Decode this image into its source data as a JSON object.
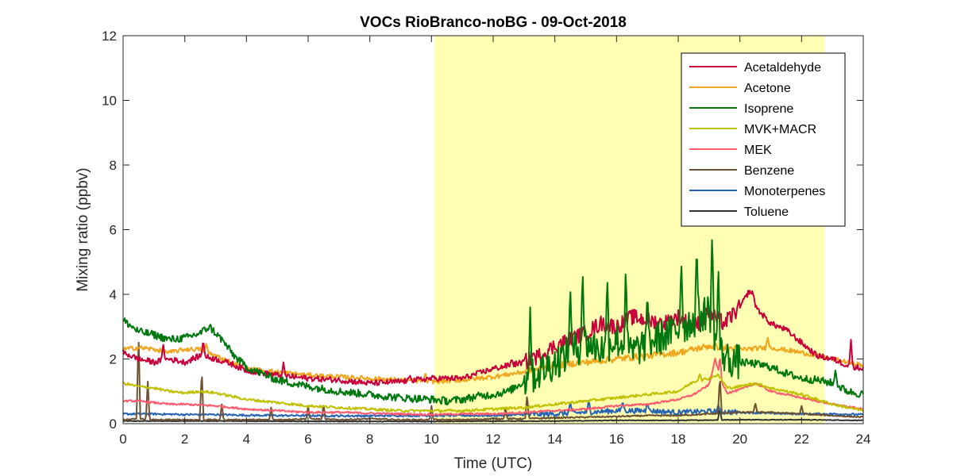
{
  "chart_data": {
    "type": "line",
    "title": "VOCs RioBranco-noBG - 09-Oct-2018",
    "xlabel": "Time (UTC)",
    "ylabel": "Mixing ratio (ppbv)",
    "xlim": [
      0,
      24
    ],
    "ylim": [
      0,
      12
    ],
    "xticks": [
      0,
      2,
      4,
      6,
      8,
      10,
      12,
      14,
      16,
      18,
      20,
      22,
      24
    ],
    "yticks": [
      0,
      2,
      4,
      6,
      8,
      10,
      12
    ],
    "grid": false,
    "legend_position": "top-right",
    "highlight_band": {
      "x": [
        10.1,
        22.75
      ],
      "color": "#ffffb3"
    },
    "series": [
      {
        "name": "Acetaldehyde",
        "color": "#c8003c",
        "x": [
          0,
          0.5,
          1,
          1.5,
          2,
          2.5,
          3,
          3.5,
          4,
          5,
          6,
          7,
          8,
          9,
          10,
          11,
          12,
          12.5,
          13,
          13.5,
          14,
          14.5,
          15,
          15.5,
          16,
          16.5,
          17,
          17.5,
          18,
          18.5,
          19,
          19.5,
          20,
          20.3,
          20.6,
          21,
          21.5,
          22,
          22.5,
          23,
          23.5,
          24
        ],
        "y": [
          2.2,
          2.0,
          1.9,
          2.0,
          1.9,
          2.1,
          2.0,
          1.85,
          1.65,
          1.5,
          1.4,
          1.35,
          1.25,
          1.3,
          1.4,
          1.4,
          1.7,
          1.8,
          1.9,
          2.1,
          2.4,
          2.6,
          2.8,
          3.1,
          3.0,
          3.3,
          3.2,
          3.1,
          3.3,
          3.0,
          3.4,
          3.1,
          3.6,
          4.1,
          3.5,
          3.1,
          2.9,
          2.5,
          2.1,
          2.0,
          1.8,
          1.7
        ],
        "spikes": [
          [
            1.3,
            2.5
          ],
          [
            2.6,
            2.6
          ],
          [
            5.2,
            1.9
          ],
          [
            9.3,
            1.5
          ],
          [
            12.6,
            2.0
          ],
          [
            13.3,
            2.2
          ],
          [
            18.9,
            3.6
          ],
          [
            20.4,
            4.1
          ],
          [
            23.6,
            2.6
          ]
        ]
      },
      {
        "name": "Acetone",
        "color": "#f0a61e",
        "x": [
          0,
          0.5,
          1,
          1.5,
          2,
          2.5,
          3,
          3.5,
          4,
          5,
          6,
          7,
          8,
          9,
          10,
          11,
          12,
          13,
          14,
          15,
          16,
          17,
          18,
          19,
          20,
          21,
          22,
          23,
          24
        ],
        "y": [
          2.3,
          2.35,
          2.3,
          2.2,
          2.3,
          2.3,
          2.1,
          1.9,
          1.7,
          1.6,
          1.5,
          1.45,
          1.4,
          1.35,
          1.3,
          1.35,
          1.45,
          1.6,
          1.8,
          1.9,
          2.0,
          2.1,
          2.2,
          2.4,
          2.3,
          2.35,
          2.2,
          2.0,
          1.8
        ],
        "spikes": [
          [
            2.7,
            2.5
          ],
          [
            9.8,
            1.6
          ],
          [
            20.9,
            2.7
          ]
        ]
      },
      {
        "name": "Isoprene",
        "color": "#00780f",
        "x": [
          0,
          0.5,
          1,
          1.5,
          2,
          2.5,
          2.8,
          3.2,
          3.6,
          4,
          5,
          6,
          7,
          8,
          9,
          10,
          10.5,
          11,
          11.5,
          12,
          12.5,
          13,
          13.5,
          14,
          14.5,
          15,
          15.5,
          16,
          16.5,
          17,
          17.5,
          18,
          18.5,
          19,
          19.3,
          19.6,
          20,
          20.5,
          21,
          21.5,
          22,
          22.5,
          23,
          23.5,
          24
        ],
        "y": [
          3.2,
          2.85,
          2.75,
          2.6,
          2.65,
          2.8,
          3.0,
          2.6,
          2.1,
          1.75,
          1.35,
          1.15,
          1.0,
          0.9,
          0.8,
          0.75,
          0.7,
          0.75,
          0.85,
          0.9,
          1.0,
          1.3,
          1.6,
          1.9,
          2.2,
          2.5,
          2.3,
          2.6,
          2.2,
          2.5,
          2.7,
          2.9,
          3.2,
          3.5,
          2.3,
          2.0,
          1.9,
          1.85,
          1.75,
          1.55,
          1.4,
          1.35,
          1.25,
          1.0,
          0.9
        ],
        "spikes": [
          [
            13.2,
            3.6
          ],
          [
            14.5,
            4.3
          ],
          [
            14.9,
            4.8
          ],
          [
            15.7,
            4.6
          ],
          [
            16.3,
            4.9
          ],
          [
            17.0,
            4.1
          ],
          [
            18.1,
            5.1
          ],
          [
            18.6,
            5.6
          ],
          [
            19.1,
            6.0
          ],
          [
            19.3,
            5.0
          ],
          [
            23.1,
            1.7
          ]
        ]
      },
      {
        "name": "MVK+MACR",
        "color": "#c0c000",
        "x": [
          0,
          0.5,
          1,
          1.5,
          2,
          2.5,
          3,
          3.5,
          4,
          5,
          6,
          7,
          8,
          9,
          10,
          11,
          12,
          13,
          14,
          15,
          16,
          17,
          18,
          18.5,
          19,
          19.3,
          19.6,
          20,
          20.5,
          21,
          22,
          23,
          24
        ],
        "y": [
          1.25,
          1.15,
          1.1,
          1.0,
          0.95,
          1.0,
          0.95,
          0.85,
          0.75,
          0.65,
          0.55,
          0.5,
          0.45,
          0.4,
          0.4,
          0.4,
          0.45,
          0.5,
          0.6,
          0.7,
          0.8,
          0.9,
          1.0,
          1.3,
          1.4,
          1.5,
          1.1,
          1.15,
          1.25,
          1.1,
          0.9,
          0.6,
          0.4
        ],
        "spikes": [
          [
            18.7,
            1.55
          ],
          [
            19.2,
            1.45
          ]
        ]
      },
      {
        "name": "MEK",
        "color": "#ff5a6e",
        "x": [
          0,
          0.5,
          1,
          1.5,
          2,
          3,
          4,
          5,
          6,
          7,
          8,
          9,
          10,
          11,
          12,
          13,
          14,
          15,
          16,
          17,
          18,
          18.5,
          19,
          19.2,
          19.4,
          19.6,
          20,
          20.5,
          21,
          22,
          23,
          24
        ],
        "y": [
          0.7,
          0.7,
          0.65,
          0.6,
          0.6,
          0.55,
          0.45,
          0.4,
          0.35,
          0.35,
          0.32,
          0.3,
          0.28,
          0.3,
          0.3,
          0.35,
          0.4,
          0.45,
          0.55,
          0.6,
          0.75,
          0.9,
          1.2,
          2.0,
          1.3,
          0.95,
          1.05,
          1.25,
          1.0,
          0.8,
          0.6,
          0.45
        ],
        "spikes": [
          [
            19.35,
            2.1
          ]
        ]
      },
      {
        "name": "Benzene",
        "color": "#6e5032",
        "x": [
          0,
          0.5,
          1,
          2,
          3,
          4,
          5,
          6,
          7,
          8,
          9,
          10,
          11,
          12,
          13,
          14,
          15,
          16,
          17,
          18,
          19,
          20,
          21,
          22,
          23,
          24
        ],
        "y": [
          0.12,
          0.15,
          0.12,
          0.12,
          0.12,
          0.12,
          0.12,
          0.15,
          0.12,
          0.15,
          0.12,
          0.12,
          0.12,
          0.15,
          0.15,
          0.18,
          0.2,
          0.22,
          0.25,
          0.25,
          0.3,
          0.35,
          0.35,
          0.3,
          0.25,
          0.2
        ],
        "spikes": [
          [
            0.5,
            2.8
          ],
          [
            0.8,
            1.3
          ],
          [
            2.55,
            1.7
          ],
          [
            3.2,
            0.6
          ],
          [
            4.8,
            0.5
          ],
          [
            6.0,
            0.55
          ],
          [
            6.5,
            0.6
          ],
          [
            10.0,
            0.55
          ],
          [
            12.4,
            0.5
          ],
          [
            13.1,
            0.9
          ],
          [
            19.35,
            1.5
          ],
          [
            20.5,
            0.65
          ],
          [
            22.0,
            0.55
          ]
        ]
      },
      {
        "name": "Monoterpenes",
        "color": "#2864b4",
        "x": [
          0,
          1,
          2,
          3,
          4,
          5,
          6,
          7,
          8,
          9,
          10,
          11,
          12,
          13,
          14,
          15,
          16,
          17,
          18,
          19,
          20,
          21,
          22,
          23,
          24
        ],
        "y": [
          0.3,
          0.3,
          0.28,
          0.28,
          0.26,
          0.25,
          0.25,
          0.24,
          0.24,
          0.25,
          0.25,
          0.25,
          0.25,
          0.28,
          0.3,
          0.35,
          0.4,
          0.4,
          0.35,
          0.38,
          0.35,
          0.32,
          0.3,
          0.3,
          0.28
        ],
        "spikes": [
          [
            14.5,
            0.7
          ],
          [
            15.1,
            0.75
          ],
          [
            16.2,
            0.7
          ],
          [
            17.0,
            0.65
          ],
          [
            19.3,
            0.6
          ]
        ]
      },
      {
        "name": "Toluene",
        "color": "#323232",
        "x": [
          0,
          2,
          4,
          6,
          8,
          10,
          12,
          14,
          16,
          18,
          20,
          22,
          24
        ],
        "y": [
          0.08,
          0.08,
          0.08,
          0.07,
          0.07,
          0.07,
          0.08,
          0.08,
          0.1,
          0.1,
          0.12,
          0.12,
          0.1
        ],
        "spikes": [
          [
            19.35,
            0.5
          ]
        ]
      }
    ]
  }
}
